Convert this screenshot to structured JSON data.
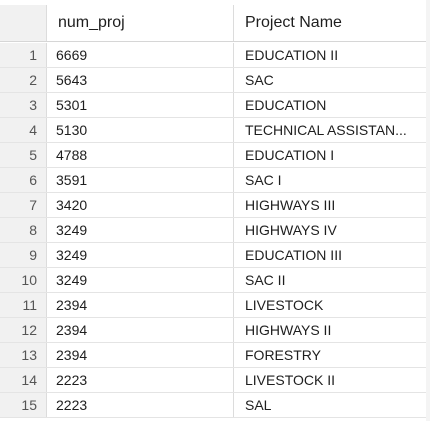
{
  "columns": [
    "num_proj",
    "Project Name"
  ],
  "rows": [
    {
      "n": "1",
      "num_proj": "6669",
      "name": "EDUCATION II"
    },
    {
      "n": "2",
      "num_proj": "5643",
      "name": "SAC"
    },
    {
      "n": "3",
      "num_proj": "5301",
      "name": "EDUCATION"
    },
    {
      "n": "4",
      "num_proj": "5130",
      "name": "TECHNICAL ASSISTAN..."
    },
    {
      "n": "5",
      "num_proj": "4788",
      "name": "EDUCATION I"
    },
    {
      "n": "6",
      "num_proj": "3591",
      "name": "SAC I"
    },
    {
      "n": "7",
      "num_proj": "3420",
      "name": "HIGHWAYS III"
    },
    {
      "n": "8",
      "num_proj": "3249",
      "name": "HIGHWAYS IV"
    },
    {
      "n": "9",
      "num_proj": "3249",
      "name": "EDUCATION III"
    },
    {
      "n": "10",
      "num_proj": "3249",
      "name": "SAC II"
    },
    {
      "n": "11",
      "num_proj": "2394",
      "name": "LIVESTOCK"
    },
    {
      "n": "12",
      "num_proj": "2394",
      "name": "HIGHWAYS II"
    },
    {
      "n": "13",
      "num_proj": "2394",
      "name": "FORESTRY"
    },
    {
      "n": "14",
      "num_proj": "2223",
      "name": "LIVESTOCK II"
    },
    {
      "n": "15",
      "num_proj": "2223",
      "name": "SAL"
    }
  ]
}
